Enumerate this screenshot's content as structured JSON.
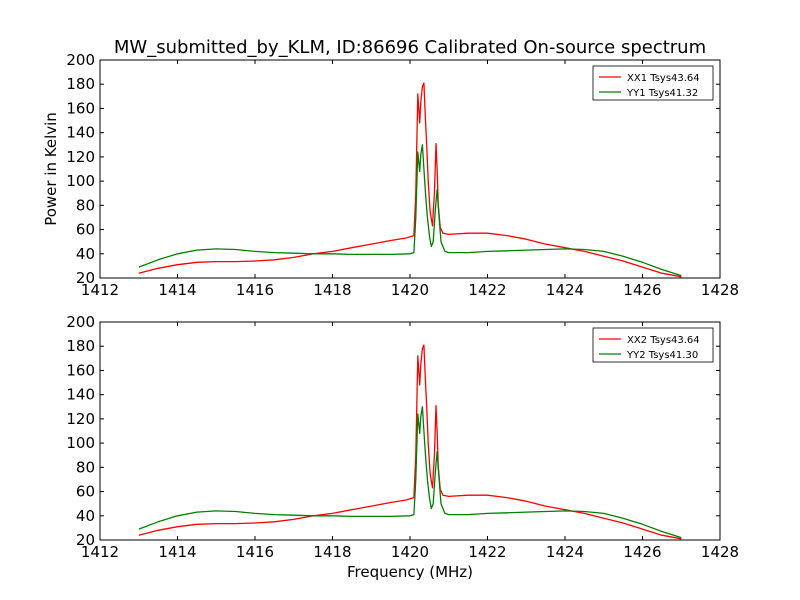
{
  "title": "MW_submitted_by_KLM, ID:86696 Calibrated On-source spectrum",
  "colors": {
    "XX": "#ff0000",
    "YY": "#008000"
  },
  "chart_data": [
    {
      "type": "line",
      "title": "MW_submitted_by_KLM, ID:86696 Calibrated On-source spectrum",
      "xlabel": "",
      "ylabel": "Power in Kelvin",
      "xlim": [
        1412,
        1428
      ],
      "ylim": [
        20,
        200
      ],
      "xticks": [
        1412,
        1414,
        1416,
        1418,
        1420,
        1422,
        1424,
        1426,
        1428
      ],
      "yticks": [
        20,
        40,
        60,
        80,
        100,
        120,
        140,
        160,
        180,
        200
      ],
      "grid": false,
      "legend": "top-right",
      "series": [
        {
          "name": "XX1 Tsys43.64",
          "color": "#ff0000",
          "x": [
            1413.0,
            1413.5,
            1414.0,
            1414.5,
            1415.0,
            1415.5,
            1416.0,
            1416.5,
            1417.0,
            1417.5,
            1418.0,
            1418.5,
            1419.0,
            1419.5,
            1419.9,
            1420.1,
            1420.15,
            1420.2,
            1420.25,
            1420.28,
            1420.32,
            1420.36,
            1420.4,
            1420.43,
            1420.47,
            1420.52,
            1420.58,
            1420.63,
            1420.67,
            1420.7,
            1420.73,
            1420.78,
            1420.85,
            1421.0,
            1421.5,
            1422.0,
            1422.5,
            1423.0,
            1423.5,
            1424.0,
            1424.5,
            1425.0,
            1425.5,
            1426.0,
            1426.5,
            1427.0
          ],
          "y": [
            24,
            28,
            31,
            33,
            33.5,
            33.5,
            34,
            35,
            37,
            40,
            42,
            45,
            48,
            51,
            53,
            55,
            90,
            172,
            148,
            165,
            178,
            181,
            150,
            130,
            100,
            75,
            63,
            90,
            131,
            110,
            80,
            62,
            57,
            56,
            57,
            57,
            55,
            52,
            48,
            45,
            42,
            38,
            34,
            29,
            24,
            21
          ]
        },
        {
          "name": "YY1 Tsys41.32",
          "color": "#008000",
          "x": [
            1413.0,
            1413.5,
            1414.0,
            1414.5,
            1415.0,
            1415.5,
            1416.0,
            1416.5,
            1417.0,
            1417.5,
            1418.0,
            1418.5,
            1419.0,
            1419.5,
            1420.0,
            1420.1,
            1420.15,
            1420.2,
            1420.25,
            1420.28,
            1420.32,
            1420.36,
            1420.4,
            1420.45,
            1420.5,
            1420.55,
            1420.6,
            1420.65,
            1420.7,
            1420.75,
            1420.8,
            1420.9,
            1421.0,
            1421.5,
            1422.0,
            1422.5,
            1423.0,
            1423.5,
            1424.0,
            1424.5,
            1425.0,
            1425.5,
            1426.0,
            1426.5,
            1427.0
          ],
          "y": [
            29,
            35,
            40,
            43,
            44,
            43.5,
            42,
            41,
            40.5,
            40,
            40,
            39.5,
            39.5,
            39.5,
            40,
            41,
            70,
            124,
            108,
            122,
            130,
            110,
            90,
            70,
            55,
            46,
            50,
            75,
            93,
            70,
            50,
            42,
            41,
            41,
            42,
            42.5,
            43,
            43.5,
            44,
            43.5,
            42,
            38,
            33,
            27,
            22
          ]
        }
      ]
    },
    {
      "type": "line",
      "title": "",
      "xlabel": "Frequency (MHz)",
      "ylabel": "",
      "xlim": [
        1412,
        1428
      ],
      "ylim": [
        20,
        200
      ],
      "xticks": [
        1412,
        1414,
        1416,
        1418,
        1420,
        1422,
        1424,
        1426,
        1428
      ],
      "yticks": [
        20,
        40,
        60,
        80,
        100,
        120,
        140,
        160,
        180,
        200
      ],
      "grid": false,
      "legend": "top-right",
      "series": [
        {
          "name": "XX2 Tsys43.64",
          "color": "#ff0000",
          "x": [
            1413.0,
            1413.5,
            1414.0,
            1414.5,
            1415.0,
            1415.5,
            1416.0,
            1416.5,
            1417.0,
            1417.5,
            1418.0,
            1418.5,
            1419.0,
            1419.5,
            1419.9,
            1420.1,
            1420.15,
            1420.2,
            1420.25,
            1420.28,
            1420.32,
            1420.36,
            1420.4,
            1420.43,
            1420.47,
            1420.52,
            1420.58,
            1420.63,
            1420.67,
            1420.7,
            1420.73,
            1420.78,
            1420.85,
            1421.0,
            1421.5,
            1422.0,
            1422.5,
            1423.0,
            1423.5,
            1424.0,
            1424.5,
            1425.0,
            1425.5,
            1426.0,
            1426.5,
            1427.0
          ],
          "y": [
            24,
            28,
            31,
            33,
            33.5,
            33.5,
            34,
            35,
            37,
            40,
            42,
            45,
            48,
            51,
            53,
            55,
            90,
            172,
            148,
            165,
            178,
            181,
            150,
            130,
            100,
            75,
            63,
            90,
            131,
            110,
            80,
            62,
            57,
            56,
            57,
            57,
            55,
            52,
            48,
            45,
            42,
            38,
            34,
            29,
            24,
            21
          ]
        },
        {
          "name": "YY2 Tsys41.30",
          "color": "#008000",
          "x": [
            1413.0,
            1413.5,
            1414.0,
            1414.5,
            1415.0,
            1415.5,
            1416.0,
            1416.5,
            1417.0,
            1417.5,
            1418.0,
            1418.5,
            1419.0,
            1419.5,
            1420.0,
            1420.1,
            1420.15,
            1420.2,
            1420.25,
            1420.28,
            1420.32,
            1420.36,
            1420.4,
            1420.45,
            1420.5,
            1420.55,
            1420.6,
            1420.65,
            1420.7,
            1420.75,
            1420.8,
            1420.9,
            1421.0,
            1421.5,
            1422.0,
            1422.5,
            1423.0,
            1423.5,
            1424.0,
            1424.5,
            1425.0,
            1425.5,
            1426.0,
            1426.5,
            1427.0
          ],
          "y": [
            29,
            35,
            40,
            43,
            44,
            43.5,
            42,
            41,
            40.5,
            40,
            40,
            39.5,
            39.5,
            39.5,
            40,
            41,
            70,
            124,
            108,
            122,
            130,
            110,
            90,
            70,
            55,
            46,
            50,
            75,
            93,
            70,
            50,
            42,
            41,
            41,
            42,
            42.5,
            43,
            43.5,
            44,
            43.5,
            42,
            38,
            33,
            27,
            22
          ]
        }
      ]
    }
  ]
}
